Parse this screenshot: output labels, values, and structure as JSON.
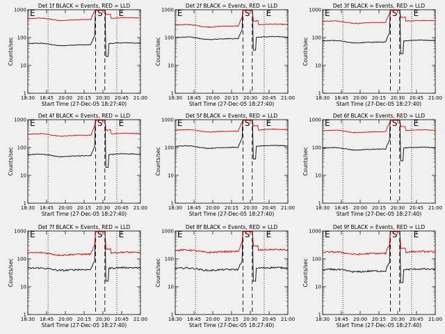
{
  "shared": {
    "xlabel": "Start Time (27-Dec-05 18:27:40)",
    "ylabel": "Counts/sec",
    "x_ticks": [
      "18:30",
      "18:45",
      "20:00",
      "20:15",
      "20:30",
      "20:45",
      "21:00"
    ],
    "y_ticks": [
      "1",
      "10",
      "100",
      "1000"
    ],
    "marker_E": "E",
    "marker_S": "S"
  },
  "colors": {
    "events": "#000000",
    "lld": "#e00000",
    "background": "#f0f0f0"
  },
  "chart_data": [
    {
      "type": "line",
      "title": "Det 1f BLACK = Events, RED = LLD",
      "ylim": [
        1,
        1000
      ],
      "yscale": "log",
      "series": [
        {
          "name": "BLACK = Events",
          "baseline": 60,
          "color": "#000000"
        },
        {
          "name": "RED = LLD",
          "baseline": 480,
          "color": "#e00000"
        }
      ]
    },
    {
      "type": "line",
      "title": "Det 2f BLACK = Events, RED = LLD",
      "ylim": [
        1,
        1000
      ],
      "yscale": "log",
      "series": [
        {
          "name": "BLACK = Events",
          "baseline": 100,
          "color": "#000000"
        },
        {
          "name": "RED = LLD",
          "baseline": 280,
          "color": "#e00000"
        }
      ]
    },
    {
      "type": "line",
      "title": "Det 3f BLACK = Events, RED = LLD",
      "ylim": [
        1,
        1000
      ],
      "yscale": "log",
      "series": [
        {
          "name": "BLACK = Events",
          "baseline": 75,
          "color": "#000000"
        },
        {
          "name": "RED = LLD",
          "baseline": 380,
          "color": "#e00000"
        }
      ]
    },
    {
      "type": "line",
      "title": "Det 4f BLACK = Events, RED = LLD",
      "ylim": [
        1,
        1000
      ],
      "yscale": "log",
      "series": [
        {
          "name": "BLACK = Events",
          "baseline": 55,
          "color": "#000000"
        },
        {
          "name": "RED = LLD",
          "baseline": 300,
          "color": "#e00000"
        }
      ]
    },
    {
      "type": "line",
      "title": "Det 5f BLACK = Events, RED = LLD",
      "ylim": [
        1,
        1000
      ],
      "yscale": "log",
      "series": [
        {
          "name": "BLACK = Events",
          "baseline": 110,
          "color": "#000000"
        },
        {
          "name": "RED = LLD",
          "baseline": 420,
          "color": "#e00000"
        }
      ]
    },
    {
      "type": "line",
      "title": "Det 6f BLACK = Events, RED = LLD",
      "ylim": [
        1,
        1000
      ],
      "yscale": "log",
      "series": [
        {
          "name": "BLACK = Events",
          "baseline": 95,
          "color": "#000000"
        },
        {
          "name": "RED = LLD",
          "baseline": 400,
          "color": "#e00000"
        }
      ]
    },
    {
      "type": "line",
      "title": "Det 7f BLACK = Events, RED = LLD",
      "ylim": [
        1,
        1000
      ],
      "yscale": "log",
      "series": [
        {
          "name": "BLACK = Events",
          "baseline": 45,
          "color": "#000000"
        },
        {
          "name": "RED = LLD",
          "baseline": 160,
          "color": "#e00000"
        }
      ]
    },
    {
      "type": "line",
      "title": "Det 8f BLACK = Events, RED = LLD",
      "ylim": [
        1,
        1000
      ],
      "yscale": "log",
      "series": [
        {
          "name": "BLACK = Events",
          "baseline": 45,
          "color": "#000000"
        },
        {
          "name": "RED = LLD",
          "baseline": 200,
          "color": "#e00000"
        }
      ]
    },
    {
      "type": "line",
      "title": "Det 9f BLACK = Events, RED = LLD",
      "ylim": [
        1,
        1000
      ],
      "yscale": "log",
      "series": [
        {
          "name": "BLACK = Events",
          "baseline": 40,
          "color": "#000000"
        },
        {
          "name": "RED = LLD",
          "baseline": 170,
          "color": "#e00000"
        }
      ]
    }
  ]
}
